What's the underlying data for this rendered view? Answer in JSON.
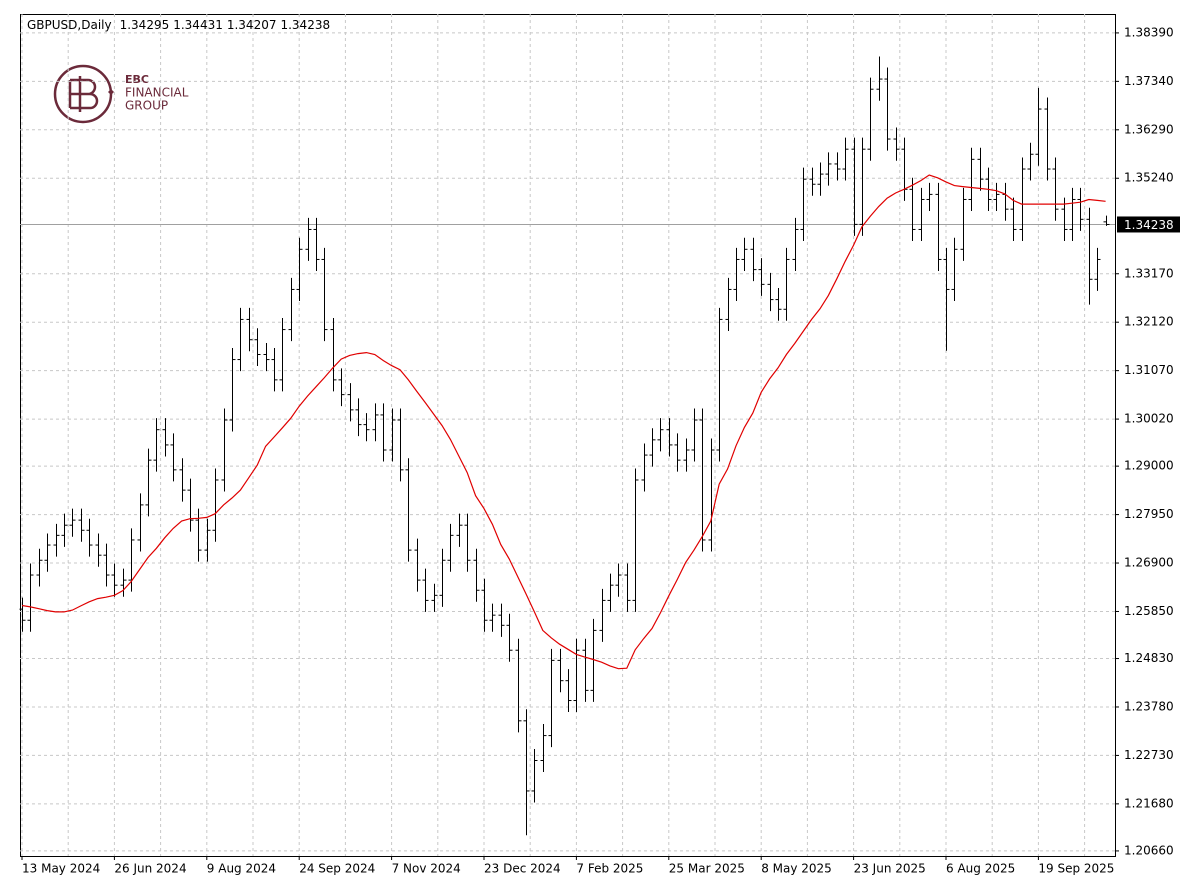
{
  "chart_data": {
    "type": "ohlc",
    "title": "GBPUSD,Daily",
    "watermark": [
      "EBC",
      "FINANCIAL",
      "GROUP"
    ],
    "bar_color": "#000000",
    "price_line_color": "#a0a0a0",
    "grid": true,
    "ylim": [
      1.2055,
      1.388
    ],
    "yticks": [
      {
        "value": 1.2066,
        "label": "1.20660"
      },
      {
        "value": 1.2168,
        "label": "1.21680"
      },
      {
        "value": 1.2273,
        "label": "1.22730"
      },
      {
        "value": 1.2378,
        "label": "1.23780"
      },
      {
        "value": 1.2483,
        "label": "1.24830"
      },
      {
        "value": 1.2585,
        "label": "1.25850"
      },
      {
        "value": 1.269,
        "label": "1.26900"
      },
      {
        "value": 1.2795,
        "label": "1.27950"
      },
      {
        "value": 1.29,
        "label": "1.29000"
      },
      {
        "value": 1.3002,
        "label": "1.30020"
      },
      {
        "value": 1.3107,
        "label": "1.31070"
      },
      {
        "value": 1.3212,
        "label": "1.32120"
      },
      {
        "value": 1.3317,
        "label": "1.33170"
      },
      {
        "value": 1.3524,
        "label": "1.35240"
      },
      {
        "value": 1.3629,
        "label": "1.36290"
      },
      {
        "value": 1.3734,
        "label": "1.37340"
      },
      {
        "value": 1.3839,
        "label": "1.38390"
      }
    ],
    "categories": [
      "13 May 2024",
      null,
      null,
      null,
      null,
      null,
      null,
      null,
      null,
      null,
      null,
      "26 Jun 2024",
      null,
      null,
      null,
      null,
      null,
      null,
      null,
      null,
      null,
      null,
      "9 Aug 2024",
      null,
      null,
      null,
      null,
      null,
      null,
      null,
      null,
      null,
      null,
      "24 Sep 2024",
      null,
      null,
      null,
      null,
      null,
      null,
      null,
      null,
      null,
      null,
      "7 Nov 2024",
      null,
      null,
      null,
      null,
      null,
      null,
      null,
      null,
      null,
      null,
      "23 Dec 2024",
      null,
      null,
      null,
      null,
      null,
      null,
      null,
      null,
      null,
      null,
      "7 Feb 2025",
      null,
      null,
      null,
      null,
      null,
      null,
      null,
      null,
      null,
      null,
      "25 Mar 2025",
      null,
      null,
      null,
      null,
      null,
      null,
      null,
      null,
      null,
      null,
      "8 May 2025",
      null,
      null,
      null,
      null,
      null,
      null,
      null,
      null,
      null,
      null,
      "23 Jun 2025",
      null,
      null,
      null,
      null,
      null,
      null,
      null,
      null,
      null,
      null,
      "6 Aug 2025",
      null,
      null,
      null,
      null,
      null,
      null,
      null,
      null,
      null,
      null,
      "19 Sep 2025",
      null,
      null,
      null,
      null,
      null,
      null,
      null,
      null
    ],
    "open": [
      1.259,
      1.2566,
      1.2664,
      1.2696,
      1.2729,
      1.275,
      1.2772,
      1.2783,
      1.2761,
      1.2729,
      1.2707,
      1.2664,
      1.2642,
      1.2653,
      1.274,
      1.2816,
      1.2913,
      1.2979,
      1.2946,
      1.2892,
      1.2848,
      1.2783,
      1.2718,
      1.2761,
      1.287,
      1.3,
      1.3131,
      1.3218,
      1.3174,
      1.3142,
      1.3131,
      1.3087,
      1.3196,
      1.3283,
      1.337,
      1.3413,
      1.3348,
      1.3196,
      1.3087,
      1.3055,
      1.3022,
      1.299,
      1.2979,
      1.3011,
      1.2935,
      1.3,
      1.2892,
      1.2718,
      1.2653,
      1.2609,
      1.262,
      1.2696,
      1.275,
      1.2772,
      1.2696,
      1.2631,
      1.2566,
      1.2577,
      1.2555,
      1.2501,
      1.2348,
      1.2196,
      1.2262,
      1.2316,
      1.2479,
      1.2435,
      1.2392,
      1.2501,
      1.2414,
      1.2544,
      1.2609,
      1.2642,
      1.2664,
      1.2609,
      1.287,
      1.2924,
      1.2957,
      1.2979,
      1.2946,
      1.2913,
      1.2935,
      1.3,
      1.274,
      1.2935,
      1.3218,
      1.3283,
      1.3348,
      1.337,
      1.3326,
      1.3294,
      1.3261,
      1.324,
      1.3348,
      1.3413,
      1.3522,
      1.3511,
      1.3533,
      1.3555,
      1.3544,
      1.3587,
      1.3424,
      1.3587,
      1.3717,
      1.3739,
      1.3609,
      1.3587,
      1.35,
      1.3413,
      1.3478,
      1.3489,
      1.3348,
      1.3283,
      1.337,
      1.3478,
      1.3565,
      1.3522,
      1.3478,
      1.3489,
      1.3457,
      1.3413,
      1.3544,
      1.3576,
      1.3674,
      1.3544,
      1.3457,
      1.3413,
      1.3478,
      1.3435,
      1.3305,
      1.34295
    ],
    "high": [
      1.2615,
      1.2689,
      1.2721,
      1.2754,
      1.2775,
      1.2797,
      1.2808,
      1.2808,
      1.2786,
      1.2754,
      1.2732,
      1.2689,
      1.2678,
      1.2765,
      1.2841,
      1.2938,
      1.3004,
      1.3004,
      1.2971,
      1.2917,
      1.2873,
      1.2808,
      1.2786,
      1.2895,
      1.3025,
      1.3156,
      1.3243,
      1.3243,
      1.3199,
      1.3167,
      1.3156,
      1.3221,
      1.3308,
      1.3395,
      1.3438,
      1.3438,
      1.3373,
      1.3221,
      1.3112,
      1.308,
      1.3047,
      1.3015,
      1.3036,
      1.3036,
      1.3025,
      1.3025,
      1.2917,
      1.2743,
      1.2678,
      1.2645,
      1.2721,
      1.2775,
      1.2797,
      1.2797,
      1.2721,
      1.2656,
      1.2602,
      1.2602,
      1.258,
      1.2526,
      1.2373,
      1.2287,
      1.2341,
      1.2504,
      1.2504,
      1.246,
      1.2526,
      1.2526,
      1.2569,
      1.2634,
      1.2667,
      1.2689,
      1.2689,
      1.2895,
      1.2949,
      1.2982,
      1.3004,
      1.3004,
      1.2971,
      1.296,
      1.3025,
      1.3025,
      1.296,
      1.3243,
      1.3308,
      1.3373,
      1.3395,
      1.3395,
      1.3351,
      1.3319,
      1.3286,
      1.3373,
      1.3438,
      1.3547,
      1.3547,
      1.3558,
      1.358,
      1.358,
      1.3612,
      1.3612,
      1.3612,
      1.3742,
      1.3788,
      1.3764,
      1.3634,
      1.3612,
      1.3525,
      1.3503,
      1.3514,
      1.3514,
      1.3373,
      1.3395,
      1.3503,
      1.359,
      1.359,
      1.3547,
      1.3514,
      1.3514,
      1.3482,
      1.3569,
      1.3601,
      1.372,
      1.3699,
      1.3569,
      1.3482,
      1.3503,
      1.3503,
      1.346,
      1.3373,
      1.34431
    ],
    "low": [
      1.2541,
      1.2541,
      1.2639,
      1.2671,
      1.2704,
      1.2725,
      1.2747,
      1.2736,
      1.2704,
      1.2682,
      1.2639,
      1.2617,
      1.2617,
      1.2628,
      1.2715,
      1.2791,
      1.2888,
      1.2921,
      1.2867,
      1.2823,
      1.2758,
      1.2693,
      1.2693,
      1.2736,
      1.2845,
      1.2975,
      1.3106,
      1.3149,
      1.3117,
      1.3106,
      1.3062,
      1.3062,
      1.3171,
      1.3258,
      1.3345,
      1.3323,
      1.3171,
      1.3062,
      1.303,
      1.2997,
      1.2965,
      1.2954,
      1.2954,
      1.291,
      1.291,
      1.2867,
      1.2693,
      1.2628,
      1.2584,
      1.2584,
      1.2595,
      1.2671,
      1.2725,
      1.2671,
      1.2606,
      1.2541,
      1.2541,
      1.253,
      1.2476,
      1.2323,
      1.21,
      1.2171,
      1.2237,
      1.2291,
      1.241,
      1.2367,
      1.2367,
      1.2389,
      1.2389,
      1.2519,
      1.2584,
      1.2617,
      1.2584,
      1.2584,
      1.2845,
      1.2899,
      1.2932,
      1.2921,
      1.2888,
      1.2888,
      1.291,
      1.2715,
      1.2715,
      1.291,
      1.3193,
      1.3258,
      1.3323,
      1.3301,
      1.3269,
      1.3236,
      1.3215,
      1.3215,
      1.3323,
      1.3388,
      1.3486,
      1.3486,
      1.3508,
      1.3519,
      1.3519,
      1.3399,
      1.3399,
      1.3562,
      1.3692,
      1.3584,
      1.3562,
      1.3475,
      1.3388,
      1.3388,
      1.3453,
      1.3323,
      1.315,
      1.3258,
      1.3345,
      1.3453,
      1.3497,
      1.3453,
      1.3453,
      1.3432,
      1.3388,
      1.3388,
      1.3519,
      1.3551,
      1.3519,
      1.3432,
      1.3388,
      1.3388,
      1.341,
      1.325,
      1.328,
      1.34207
    ],
    "close": [
      1.2566,
      1.2664,
      1.2696,
      1.2729,
      1.275,
      1.2772,
      1.2783,
      1.2761,
      1.2729,
      1.2707,
      1.2664,
      1.2642,
      1.2653,
      1.274,
      1.2816,
      1.2913,
      1.2979,
      1.2946,
      1.2892,
      1.2848,
      1.2783,
      1.2718,
      1.2761,
      1.287,
      1.3,
      1.3131,
      1.3218,
      1.3174,
      1.3142,
      1.3131,
      1.3087,
      1.3196,
      1.3283,
      1.337,
      1.3413,
      1.3348,
      1.3196,
      1.3087,
      1.3055,
      1.3022,
      1.299,
      1.2979,
      1.3011,
      1.2935,
      1.3,
      1.2892,
      1.2718,
      1.2653,
      1.2609,
      1.262,
      1.2696,
      1.275,
      1.2772,
      1.2696,
      1.2631,
      1.2566,
      1.2577,
      1.2555,
      1.2501,
      1.2348,
      1.2196,
      1.2262,
      1.2316,
      1.2479,
      1.2435,
      1.2392,
      1.2501,
      1.2414,
      1.2544,
      1.2609,
      1.2642,
      1.2664,
      1.2609,
      1.287,
      1.2924,
      1.2957,
      1.2979,
      1.2946,
      1.2913,
      1.2935,
      1.3,
      1.274,
      1.2935,
      1.3218,
      1.3283,
      1.3348,
      1.337,
      1.3326,
      1.3294,
      1.3261,
      1.324,
      1.3348,
      1.3413,
      1.3522,
      1.3511,
      1.3533,
      1.3555,
      1.3544,
      1.3587,
      1.3424,
      1.3587,
      1.3717,
      1.3739,
      1.3609,
      1.3587,
      1.35,
      1.3413,
      1.3478,
      1.3489,
      1.3348,
      1.3283,
      1.337,
      1.3478,
      1.3565,
      1.3522,
      1.3478,
      1.3489,
      1.3457,
      1.3413,
      1.3544,
      1.3576,
      1.3674,
      1.3544,
      1.3457,
      1.3413,
      1.3478,
      1.3435,
      1.3305,
      1.3348,
      1.34238
    ],
    "ma": {
      "color": "#e00000",
      "values": [
        1.2598,
        1.2595,
        1.2591,
        1.2587,
        1.2584,
        1.2584,
        1.2588,
        1.2597,
        1.2606,
        1.2613,
        1.2616,
        1.262,
        1.263,
        1.265,
        1.2676,
        1.2702,
        1.2722,
        1.2745,
        1.2765,
        1.2781,
        1.2786,
        1.2787,
        1.2789,
        1.2797,
        1.2816,
        1.2831,
        1.2848,
        1.2875,
        1.2902,
        1.2943,
        1.2963,
        1.2983,
        1.3004,
        1.303,
        1.3052,
        1.3072,
        1.3092,
        1.3113,
        1.3132,
        1.314,
        1.3144,
        1.3146,
        1.3142,
        1.3129,
        1.3118,
        1.3109,
        1.3087,
        1.3062,
        1.3038,
        1.3013,
        1.2988,
        1.2958,
        1.2922,
        1.2886,
        1.2836,
        1.2808,
        1.2774,
        1.273,
        1.2699,
        1.2661,
        1.2623,
        1.2584,
        1.2544,
        1.2528,
        1.2514,
        1.2503,
        1.2492,
        1.2486,
        1.2481,
        1.2475,
        1.2467,
        1.2461,
        1.2462,
        1.2502,
        1.2526,
        1.2548,
        1.2582,
        1.2619,
        1.2654,
        1.2691,
        1.2718,
        1.2748,
        1.2781,
        1.2861,
        1.2894,
        1.2944,
        1.2984,
        1.3015,
        1.306,
        1.3089,
        1.3113,
        1.3142,
        1.3166,
        1.3192,
        1.3218,
        1.3241,
        1.327,
        1.3306,
        1.3344,
        1.3379,
        1.3419,
        1.3442,
        1.3463,
        1.3481,
        1.3492,
        1.35,
        1.3509,
        1.3519,
        1.3531,
        1.3525,
        1.3516,
        1.3508,
        1.3506,
        1.3504,
        1.3502,
        1.35,
        1.3497,
        1.349,
        1.3476,
        1.3468,
        1.3468,
        1.3468,
        1.3468,
        1.3468,
        1.3468,
        1.347,
        1.3472,
        1.3478,
        1.3476,
        1.3474
      ]
    }
  }
}
